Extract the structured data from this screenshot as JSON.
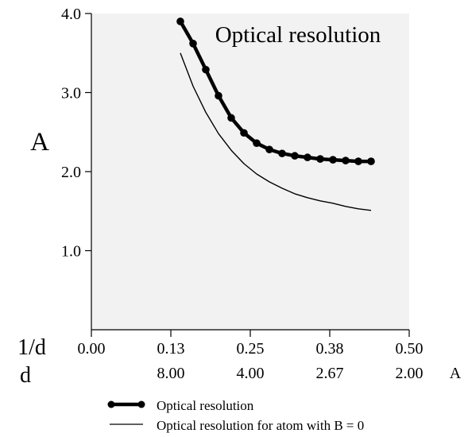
{
  "chart_data": {
    "type": "line",
    "title": "Optical resolution",
    "ylabel": "A",
    "xlabel_top_prefix": "1/d",
    "xlabel_bottom_prefix": "d",
    "xunit_bottom": "A",
    "xlim": [
      0,
      0.5
    ],
    "ylim": [
      0,
      4.0
    ],
    "yticks": [
      {
        "value": 1.0,
        "label": "1.0"
      },
      {
        "value": 2.0,
        "label": "2.0"
      },
      {
        "value": 3.0,
        "label": "3.0"
      },
      {
        "value": 4.0,
        "label": "4.0"
      }
    ],
    "xticks_top": [
      {
        "value": 0.0,
        "label": "0.00"
      },
      {
        "value": 0.125,
        "label": "0.13"
      },
      {
        "value": 0.25,
        "label": "0.25"
      },
      {
        "value": 0.375,
        "label": "0.38"
      },
      {
        "value": 0.5,
        "label": "0.50"
      }
    ],
    "xticks_bottom": [
      {
        "value": 0.125,
        "label": "8.00"
      },
      {
        "value": 0.25,
        "label": "4.00"
      },
      {
        "value": 0.375,
        "label": "2.67"
      },
      {
        "value": 0.5,
        "label": "2.00"
      }
    ],
    "series": [
      {
        "name": "Optical resolution",
        "style": "thick-markers",
        "color": "#000000",
        "x": [
          0.14,
          0.16,
          0.18,
          0.2,
          0.22,
          0.24,
          0.26,
          0.28,
          0.3,
          0.32,
          0.34,
          0.36,
          0.38,
          0.4,
          0.42,
          0.44
        ],
        "y": [
          3.9,
          3.62,
          3.29,
          2.96,
          2.68,
          2.49,
          2.36,
          2.28,
          2.23,
          2.2,
          2.18,
          2.16,
          2.15,
          2.14,
          2.13,
          2.13
        ]
      },
      {
        "name": "Optical resolution for atom with B = 0",
        "style": "thin",
        "color": "#000000",
        "x": [
          0.14,
          0.16,
          0.18,
          0.2,
          0.22,
          0.24,
          0.26,
          0.28,
          0.3,
          0.32,
          0.34,
          0.36,
          0.38,
          0.4,
          0.42,
          0.44
        ],
        "y": [
          3.5,
          3.08,
          2.75,
          2.48,
          2.27,
          2.1,
          1.97,
          1.87,
          1.79,
          1.72,
          1.67,
          1.63,
          1.6,
          1.56,
          1.53,
          1.51
        ]
      }
    ],
    "grid": false,
    "plot_background": "#f2f2f2",
    "legend_position": "bottom"
  }
}
